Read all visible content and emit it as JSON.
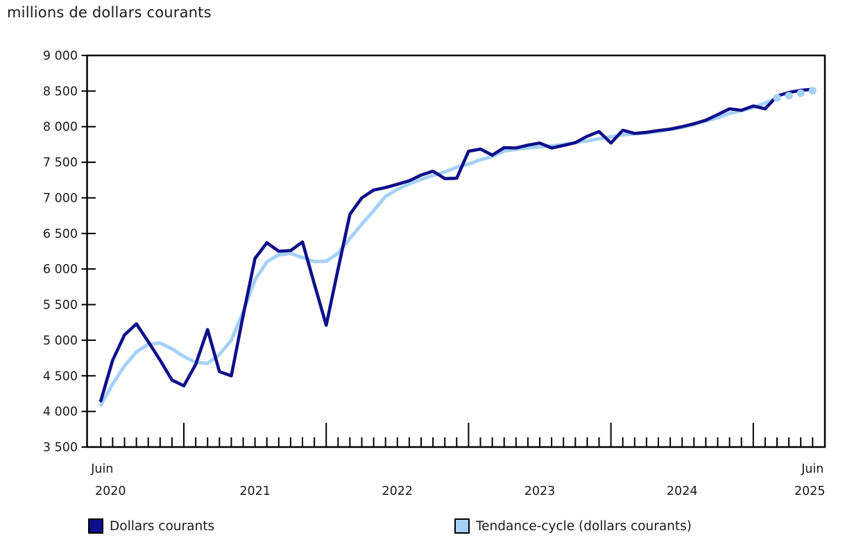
{
  "chart_data": {
    "type": "line",
    "title": "millions de dollars courants",
    "y_axis": {
      "min": 3500,
      "max": 9000,
      "step": 500,
      "tick_labels": [
        "9 000",
        "8 500",
        "8 000",
        "7 500",
        "7 000",
        "6 500",
        "6 000",
        "5 500",
        "5 000",
        "4 500",
        "4 000",
        "3 500"
      ]
    },
    "x_axis": {
      "first_label": {
        "month": "Juin",
        "year": "2020"
      },
      "last_label": {
        "month": "Juin",
        "year": "2025"
      },
      "mid_year_labels": [
        "2021",
        "2022",
        "2023",
        "2024"
      ]
    },
    "months": [
      "2020-06",
      "2020-07",
      "2020-08",
      "2020-09",
      "2020-10",
      "2020-11",
      "2020-12",
      "2021-01",
      "2021-02",
      "2021-03",
      "2021-04",
      "2021-05",
      "2021-06",
      "2021-07",
      "2021-08",
      "2021-09",
      "2021-10",
      "2021-11",
      "2021-12",
      "2022-01",
      "2022-02",
      "2022-03",
      "2022-04",
      "2022-05",
      "2022-06",
      "2022-07",
      "2022-08",
      "2022-09",
      "2022-10",
      "2022-11",
      "2022-12",
      "2023-01",
      "2023-02",
      "2023-03",
      "2023-04",
      "2023-05",
      "2023-06",
      "2023-07",
      "2023-08",
      "2023-09",
      "2023-10",
      "2023-11",
      "2023-12",
      "2024-01",
      "2024-02",
      "2024-03",
      "2024-04",
      "2024-05",
      "2024-06",
      "2024-07",
      "2024-08",
      "2024-09",
      "2024-10",
      "2024-11",
      "2024-12",
      "2025-01",
      "2025-02",
      "2025-03",
      "2025-04",
      "2025-05",
      "2025-06"
    ],
    "series": [
      {
        "name": "Dollars courants",
        "color": "#0f0f8b",
        "values": [
          4150,
          4720,
          5075,
          5230,
          4980,
          4720,
          4440,
          4360,
          4660,
          5150,
          4560,
          4500,
          5350,
          6150,
          6370,
          6250,
          6260,
          6380,
          5790,
          5210,
          6000,
          6770,
          7000,
          7110,
          7145,
          7190,
          7240,
          7320,
          7375,
          7270,
          7275,
          7655,
          7685,
          7600,
          7705,
          7700,
          7740,
          7770,
          7700,
          7735,
          7775,
          7865,
          7930,
          7770,
          7950,
          7905,
          7920,
          7945,
          7965,
          8000,
          8040,
          8090,
          8170,
          8250,
          8230,
          8290,
          8250,
          8430,
          8480,
          8510,
          8525
        ]
      },
      {
        "name": "Tendance-cycle (dollars courants)",
        "color": "#a5d1f7",
        "dot_tail_points": 4,
        "values": [
          4090,
          4385,
          4640,
          4835,
          4945,
          4960,
          4880,
          4770,
          4690,
          4675,
          4800,
          5000,
          5400,
          5850,
          6100,
          6200,
          6220,
          6160,
          6105,
          6110,
          6220,
          6430,
          6630,
          6820,
          7020,
          7120,
          7195,
          7260,
          7315,
          7365,
          7430,
          7475,
          7535,
          7580,
          7660,
          7680,
          7700,
          7715,
          7730,
          7750,
          7775,
          7800,
          7830,
          7860,
          7885,
          7900,
          7910,
          7935,
          7960,
          7990,
          8030,
          8080,
          8125,
          8185,
          8225,
          8270,
          8330,
          8405,
          8435,
          8470,
          8505
        ]
      }
    ],
    "grid": "off",
    "legend_position": "bottom"
  }
}
